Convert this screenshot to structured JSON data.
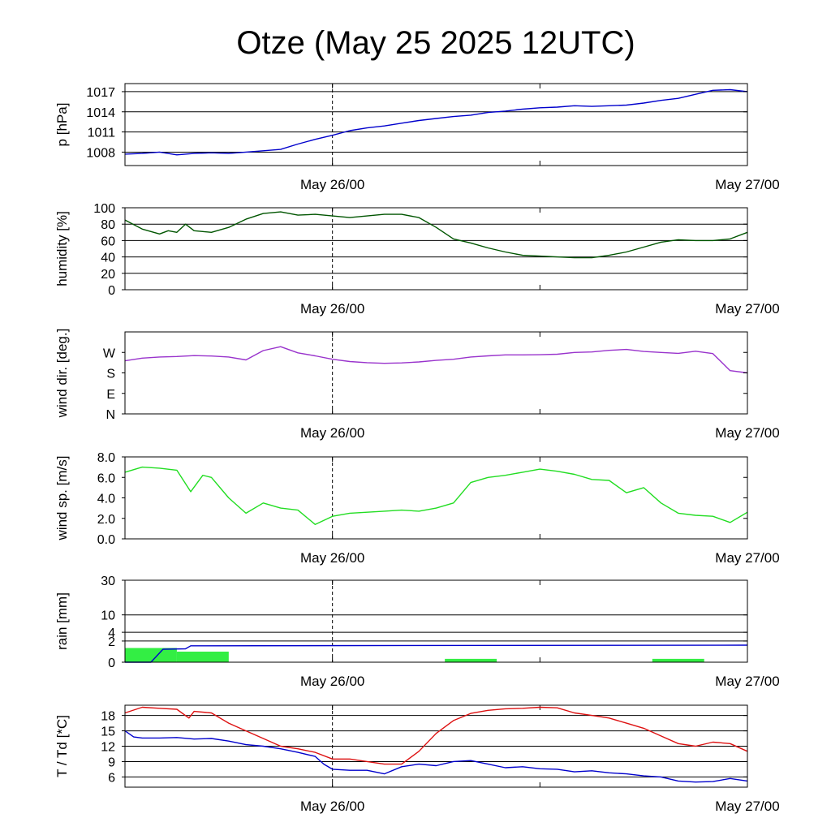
{
  "chart_data": {
    "title": "Otze (May 25 2025 12UTC)",
    "x_axis": {
      "range": [
        "May 25 12UTC",
        "May 27 00UTC"
      ],
      "major_ticks": [
        "May 26/00",
        "May 27/00"
      ],
      "marker": "May 26/00"
    },
    "panels": [
      {
        "id": "pressure",
        "type": "line",
        "ylabel": "p [hPa]",
        "ylim": [
          1006,
          1018.2
        ],
        "yticks": [
          1008,
          1011,
          1014,
          1017
        ],
        "grid": true,
        "series": [
          {
            "color": "#0000cc",
            "x": [
              0,
              1,
              2,
              3,
              4,
              5,
              6,
              7,
              8,
              9,
              10,
              11,
              12,
              13,
              14,
              15,
              16,
              17,
              18,
              19,
              20,
              21,
              22,
              23,
              24,
              25,
              26,
              27,
              28,
              29,
              30,
              31,
              32,
              33,
              34,
              35,
              36
            ],
            "y": [
              1007.7,
              1007.8,
              1008.0,
              1007.6,
              1007.8,
              1007.9,
              1007.8,
              1008.0,
              1008.2,
              1008.4,
              1009.2,
              1009.9,
              1010.5,
              1011.2,
              1011.6,
              1011.9,
              1012.3,
              1012.7,
              1013.0,
              1013.3,
              1013.5,
              1013.9,
              1014.1,
              1014.4,
              1014.6,
              1014.7,
              1014.9,
              1014.8,
              1014.9,
              1015.0,
              1015.3,
              1015.7,
              1016.0,
              1016.6,
              1017.2,
              1017.3,
              1017.0
            ]
          }
        ]
      },
      {
        "id": "humidity",
        "type": "line",
        "ylabel": "humidity [%]",
        "ylim": [
          0,
          100
        ],
        "yticks": [
          0,
          20,
          40,
          60,
          80,
          100
        ],
        "grid": true,
        "series": [
          {
            "color": "#005500",
            "x": [
              0,
              1,
              2,
              2.5,
              3,
              3.5,
              4,
              5,
              6,
              7,
              8,
              9,
              10,
              11,
              12,
              13,
              14,
              15,
              16,
              17,
              18,
              19,
              20,
              21,
              22,
              23,
              24,
              25,
              26,
              27,
              28,
              29,
              30,
              31,
              32,
              33,
              34,
              35,
              36
            ],
            "y": [
              85,
              74,
              68,
              72,
              70,
              80,
              72,
              70,
              76,
              86,
              93,
              95,
              91,
              92,
              90,
              88,
              90,
              92,
              92,
              88,
              76,
              62,
              57,
              51,
              46,
              42,
              41,
              40,
              39,
              39,
              42,
              46,
              52,
              58,
              61,
              60,
              60,
              62,
              70
            ]
          }
        ]
      },
      {
        "id": "wind_dir",
        "type": "line",
        "ylabel": "wind dir. [deg.]",
        "ylim": [
          0,
          360
        ],
        "yticks": [
          0,
          90,
          180,
          270
        ],
        "ytick_labels": [
          "N",
          "E",
          "S",
          "W"
        ],
        "grid": false,
        "series": [
          {
            "color": "#9933cc",
            "x": [
              0,
              1,
              2,
              3,
              4,
              5,
              6,
              7,
              8,
              9,
              10,
              11,
              12,
              13,
              14,
              15,
              16,
              17,
              18,
              19,
              20,
              21,
              22,
              23,
              24,
              25,
              26,
              27,
              28,
              29,
              30,
              31,
              32,
              33,
              34,
              35,
              36
            ],
            "y": [
              233,
              245,
              250,
              252,
              256,
              254,
              250,
              237,
              278,
              295,
              268,
              255,
              240,
              230,
              225,
              222,
              224,
              228,
              235,
              240,
              250,
              255,
              259,
              259,
              260,
              262,
              270,
              272,
              279,
              283,
              274,
              270,
              266,
              275,
              265,
              190,
              180
            ]
          }
        ]
      },
      {
        "id": "wind_speed",
        "type": "line",
        "ylabel": "wind sp. [m/s]",
        "ylim": [
          0,
          8
        ],
        "yticks": [
          0.0,
          2.0,
          4.0,
          6.0,
          8.0
        ],
        "ytick_labels": [
          "0.0",
          "2.0",
          "4.0",
          "6.0",
          "8.0"
        ],
        "grid": false,
        "series": [
          {
            "color": "#22dd22",
            "x": [
              0,
              1,
              2,
              3,
              3.8,
              4.5,
              5,
              6,
              7,
              8,
              9,
              10,
              11,
              12,
              13,
              14,
              15,
              16,
              17,
              18,
              19,
              20,
              21,
              22,
              23,
              24,
              25,
              26,
              27,
              28,
              29,
              30,
              31,
              32,
              33,
              34,
              35,
              36
            ],
            "y": [
              6.5,
              7.0,
              6.9,
              6.7,
              4.6,
              6.2,
              6.0,
              4.0,
              2.5,
              3.5,
              3.0,
              2.8,
              1.4,
              2.2,
              2.5,
              2.6,
              2.7,
              2.8,
              2.7,
              3.0,
              3.5,
              5.5,
              6.0,
              6.2,
              6.5,
              6.8,
              6.6,
              6.3,
              5.8,
              5.7,
              4.5,
              5.0,
              3.5,
              2.5,
              2.3,
              2.2,
              1.6,
              2.6
            ]
          }
        ]
      },
      {
        "id": "rain",
        "type": "bar+line",
        "ylabel": "rain [mm]",
        "ylim": [
          0,
          30
        ],
        "yticks": [
          0,
          2,
          4,
          10,
          30
        ],
        "ytick_labels": [
          "0",
          "2",
          "4",
          "10",
          "30"
        ],
        "grid": true,
        "bars": {
          "color": "#33ee44",
          "x": [
            1.5,
            4.5,
            20,
            32
          ],
          "width": [
            3,
            3,
            3,
            3
          ],
          "values": [
            0.9,
            0.5,
            0.05,
            0.05
          ]
        },
        "series": [
          {
            "color": "#0000cc",
            "x": [
              0,
              1.5,
              2.2,
              3.5,
              3.8,
              36
            ],
            "y": [
              0,
              0,
              0.75,
              0.8,
              1.2,
              1.3
            ]
          }
        ]
      },
      {
        "id": "temperature",
        "type": "line",
        "ylabel": "T / Td [*C]",
        "ylim": [
          4,
          20
        ],
        "yticks": [
          6,
          9,
          12,
          15,
          18
        ],
        "grid": true,
        "series": [
          {
            "color": "#dd1111",
            "x": [
              0,
              1,
              2,
              3,
              3.7,
              4,
              5,
              6,
              7,
              8,
              9,
              10,
              11,
              12,
              13,
              14,
              15,
              16,
              17,
              18,
              19,
              20,
              21,
              22,
              23,
              24,
              25,
              26,
              27,
              28,
              29,
              30,
              31,
              32,
              33,
              34,
              35,
              36
            ],
            "y": [
              18.5,
              19.6,
              19.4,
              19.2,
              17.5,
              18.8,
              18.5,
              16.5,
              15.0,
              13.5,
              12.0,
              11.5,
              10.8,
              9.5,
              9.5,
              9.0,
              8.5,
              8.5,
              11.0,
              14.5,
              17.0,
              18.4,
              19.0,
              19.3,
              19.4,
              19.6,
              19.5,
              18.5,
              18.0,
              17.5,
              16.5,
              15.5,
              14.0,
              12.5,
              12.0,
              12.8,
              12.5,
              11.0
            ]
          },
          {
            "color": "#0000cc",
            "x": [
              0,
              0.5,
              1,
              2,
              3,
              4,
              5,
              6,
              7,
              8,
              9,
              10,
              11,
              11.5,
              12,
              13,
              14,
              15,
              16,
              17,
              18,
              19,
              20,
              21,
              22,
              23,
              24,
              25,
              26,
              27,
              28,
              29,
              30,
              31,
              32,
              33,
              34,
              35,
              36
            ],
            "y": [
              15.0,
              13.8,
              13.6,
              13.6,
              13.7,
              13.4,
              13.5,
              13.0,
              12.3,
              12.0,
              11.5,
              10.8,
              10.0,
              8.5,
              7.5,
              7.3,
              7.3,
              6.6,
              8.0,
              8.5,
              8.2,
              9.0,
              9.2,
              8.5,
              7.8,
              8.0,
              7.6,
              7.5,
              7.0,
              7.2,
              6.8,
              6.6,
              6.2,
              6.0,
              5.2,
              5.0,
              5.1,
              5.7,
              5.2
            ]
          }
        ]
      }
    ]
  }
}
